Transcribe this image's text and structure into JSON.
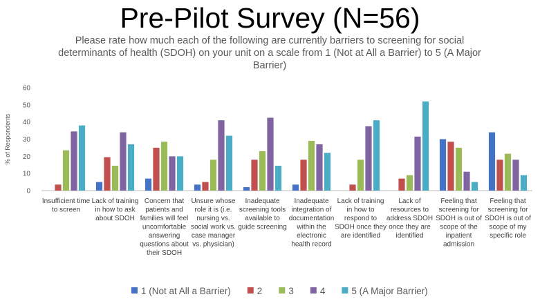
{
  "title": "Pre-Pilot Survey (N=56)",
  "subtitle": "Please rate how much each of the following are currently barriers to screening for social determinants of health (SDOH) on your unit on a scale from 1 (Not at All a Barrier) to 5 (A Major Barrier)",
  "chart_data": {
    "type": "bar",
    "title": "Pre-Pilot Survey (N=56)",
    "ylabel": "% of Respondents",
    "xlabel": "",
    "ylim": [
      0,
      60
    ],
    "yticks": [
      0,
      10,
      20,
      30,
      40,
      50,
      60
    ],
    "grid": false,
    "legend_position": "bottom",
    "categories": [
      [
        "Insufficient time",
        "to screen"
      ],
      [
        "Lack of training",
        "in how to ask",
        "about SDOH"
      ],
      [
        "Concern that",
        "patients and",
        "families will feel",
        "uncomfortable",
        "answering",
        "questions about",
        "their SDOH"
      ],
      [
        "Unsure whose",
        "role it is (i.e.",
        "nursing vs.",
        "social work vs.",
        "case manager",
        "vs. physician)"
      ],
      [
        "Inadequate",
        "screening tools",
        "available to",
        "guide screening"
      ],
      [
        "Inadequate",
        "integration of",
        "documentation",
        "within the",
        "electronic",
        "health record"
      ],
      [
        "Lack of training",
        "in how to",
        "respond to",
        "SDOH once they",
        "are identified"
      ],
      [
        "Lack of",
        "resources to",
        "address SDOH",
        "once they are",
        "identified"
      ],
      [
        "Feeling that",
        "screening for",
        "SDOH is out of",
        "scope of the",
        "inpatient",
        "admission"
      ],
      [
        "Feeling that",
        "screening for",
        "SDOH is out of",
        "scope of my",
        "specific role"
      ]
    ],
    "series": [
      {
        "name": "1 (Not at All a Barrier)",
        "color": "#4472C4",
        "values": [
          0,
          5,
          7,
          3.5,
          2,
          3.5,
          0,
          0,
          30,
          34
        ]
      },
      {
        "name": "2",
        "color": "#C0504D",
        "values": [
          3.5,
          19.5,
          25,
          5,
          18,
          18,
          3.5,
          7,
          28.5,
          18
        ]
      },
      {
        "name": "3",
        "color": "#9BBB59",
        "values": [
          23.5,
          14.5,
          28.5,
          18,
          23,
          29,
          18,
          9,
          25,
          21.5
        ]
      },
      {
        "name": "4",
        "color": "#8064A2",
        "values": [
          34.5,
          34,
          20,
          41,
          42.5,
          27,
          37.5,
          31.5,
          11,
          18
        ]
      },
      {
        "name": "5 (A Major Barrier)",
        "color": "#4BACC6",
        "values": [
          38,
          27,
          20,
          32,
          14.5,
          22,
          41,
          52,
          5,
          9
        ]
      }
    ]
  }
}
